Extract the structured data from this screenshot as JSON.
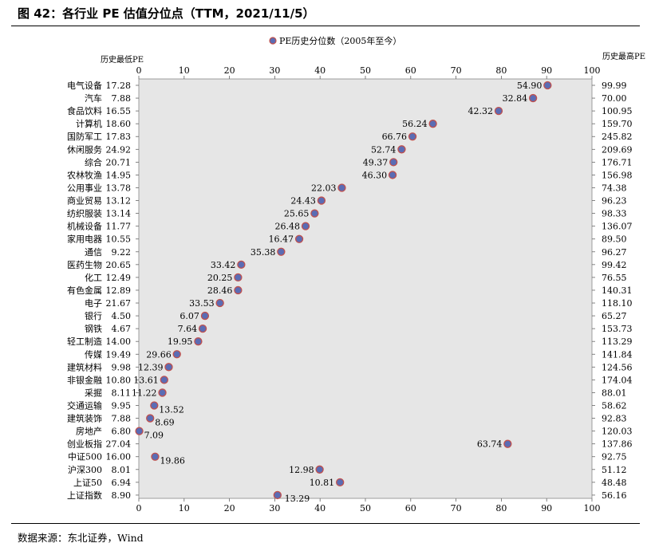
{
  "figure": {
    "title": "图 42：各行业 PE 估值分位点（TTM，2021/11/5）",
    "source": "数据来源：东北证券，Wind"
  },
  "chart_data": {
    "type": "scatter",
    "legend": {
      "label": "PE历史分位数（2005年至今）",
      "placement": "top-center"
    },
    "left_axis_label": "历史最低PE",
    "right_axis_label": "历史最高PE",
    "xlim": [
      0,
      100
    ],
    "x_ticks": [
      0,
      10,
      20,
      30,
      40,
      50,
      60,
      70,
      80,
      90,
      100
    ],
    "grid": false,
    "colors": {
      "marker_fill": "#5B6CB4",
      "marker_edge": "#C0504D",
      "plot_bg": "#E6E6E6"
    },
    "rows": [
      {
        "name": "电气设备",
        "min": "17.28",
        "max": "99.99",
        "pct": 90.2,
        "pe": "54.90"
      },
      {
        "name": "汽车",
        "min": "7.88",
        "max": "70.00",
        "pct": 87.0,
        "pe": "32.84"
      },
      {
        "name": "食品饮料",
        "min": "16.55",
        "max": "100.95",
        "pct": 79.4,
        "pe": "42.32"
      },
      {
        "name": "计算机",
        "min": "18.60",
        "max": "159.70",
        "pct": 64.9,
        "pe": "56.24"
      },
      {
        "name": "国防军工",
        "min": "17.83",
        "max": "245.82",
        "pct": 60.4,
        "pe": "66.76"
      },
      {
        "name": "休闲服务",
        "min": "24.92",
        "max": "209.69",
        "pct": 58.0,
        "pe": "52.74"
      },
      {
        "name": "综合",
        "min": "20.71",
        "max": "176.71",
        "pct": 56.2,
        "pe": "49.37"
      },
      {
        "name": "农林牧渔",
        "min": "14.95",
        "max": "156.98",
        "pct": 56.0,
        "pe": "46.30"
      },
      {
        "name": "公用事业",
        "min": "13.78",
        "max": "74.38",
        "pct": 44.8,
        "pe": "22.03"
      },
      {
        "name": "商业贸易",
        "min": "13.12",
        "max": "96.23",
        "pct": 40.3,
        "pe": "24.43"
      },
      {
        "name": "纺织服装",
        "min": "13.14",
        "max": "98.33",
        "pct": 38.8,
        "pe": "25.65"
      },
      {
        "name": "机械设备",
        "min": "11.77",
        "max": "136.07",
        "pct": 36.8,
        "pe": "26.48"
      },
      {
        "name": "家用电器",
        "min": "10.55",
        "max": "89.50",
        "pct": 35.4,
        "pe": "16.47"
      },
      {
        "name": "通信",
        "min": "9.22",
        "max": "96.27",
        "pct": 31.4,
        "pe": "35.38"
      },
      {
        "name": "医药生物",
        "min": "20.65",
        "max": "99.42",
        "pct": 22.6,
        "pe": "33.42"
      },
      {
        "name": "化工",
        "min": "12.49",
        "max": "76.55",
        "pct": 21.9,
        "pe": "20.25"
      },
      {
        "name": "有色金属",
        "min": "12.89",
        "max": "140.31",
        "pct": 21.9,
        "pe": "28.46"
      },
      {
        "name": "电子",
        "min": "21.67",
        "max": "118.10",
        "pct": 17.9,
        "pe": "33.53"
      },
      {
        "name": "银行",
        "min": "4.50",
        "max": "65.27",
        "pct": 14.6,
        "pe": "6.07"
      },
      {
        "name": "钢铁",
        "min": "4.67",
        "max": "153.73",
        "pct": 14.1,
        "pe": "7.64"
      },
      {
        "name": "轻工制造",
        "min": "14.00",
        "max": "113.29",
        "pct": 13.1,
        "pe": "19.95"
      },
      {
        "name": "传媒",
        "min": "19.49",
        "max": "141.84",
        "pct": 8.4,
        "pe": "29.66"
      },
      {
        "name": "建筑材料",
        "min": "9.98",
        "max": "124.56",
        "pct": 6.6,
        "pe": "12.39"
      },
      {
        "name": "非银金融",
        "min": "10.80",
        "max": "174.04",
        "pct": 5.6,
        "pe": "13.61"
      },
      {
        "name": "采掘",
        "min": "8.11",
        "max": "88.01",
        "pct": 5.2,
        "pe": "11.22"
      },
      {
        "name": "交通运输",
        "min": "9.95",
        "max": "58.62",
        "pct": 3.4,
        "pe": "13.52"
      },
      {
        "name": "建筑装饰",
        "min": "7.88",
        "max": "92.83",
        "pct": 2.5,
        "pe": "8.69"
      },
      {
        "name": "房地产",
        "min": "6.80",
        "max": "120.03",
        "pct": 0.1,
        "pe": "7.09"
      },
      {
        "name": "创业板指",
        "min": "27.04",
        "max": "137.86",
        "pct": 81.4,
        "pe": "63.74"
      },
      {
        "name": "中证500",
        "min": "16.00",
        "max": "92.75",
        "pct": 3.6,
        "pe": "19.86"
      },
      {
        "name": "沪深300",
        "min": "8.01",
        "max": "51.12",
        "pct": 39.9,
        "pe": "12.98"
      },
      {
        "name": "上证50",
        "min": "6.94",
        "max": "48.48",
        "pct": 44.4,
        "pe": "10.81"
      },
      {
        "name": "上证指数",
        "min": "8.90",
        "max": "56.16",
        "pct": 30.6,
        "pe": "13.29"
      }
    ]
  }
}
